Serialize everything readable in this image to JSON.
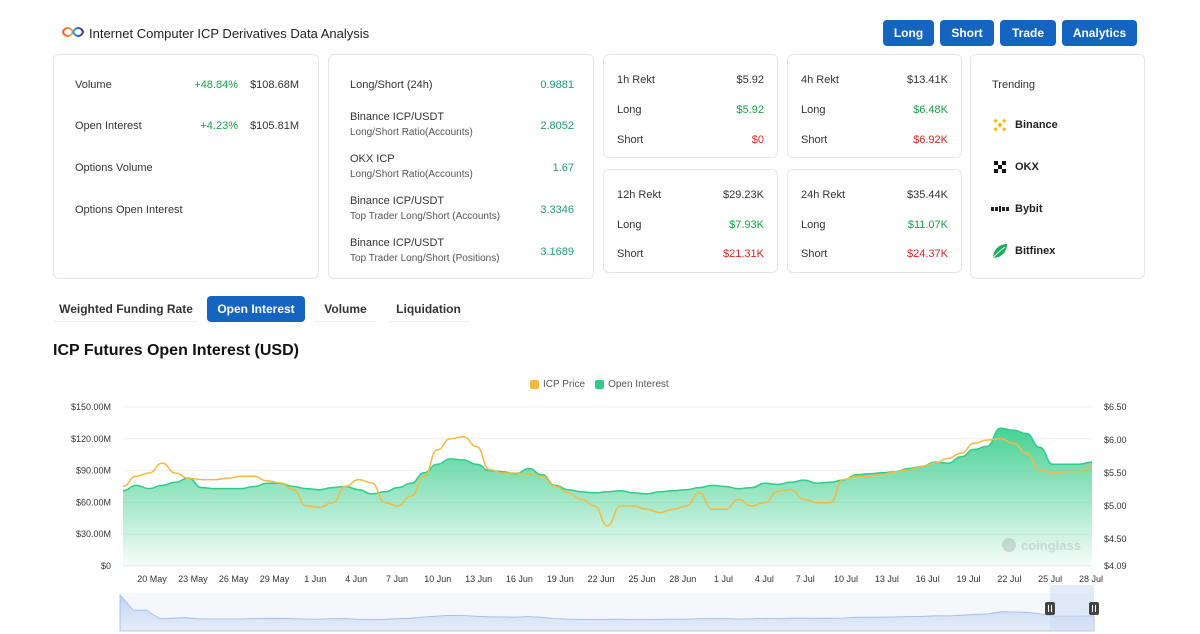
{
  "header": {
    "title": "Internet Computer ICP Derivatives Data Analysis",
    "buttons": [
      "Long",
      "Short",
      "Trade",
      "Analytics"
    ]
  },
  "stats": {
    "volume": {
      "label": "Volume",
      "change": "+48.84%",
      "value": "$108.68M"
    },
    "open_interest": {
      "label": "Open Interest",
      "change": "+4.23%",
      "value": "$105.81M"
    },
    "options_volume": {
      "label": "Options Volume"
    },
    "options_open_interest": {
      "label": "Options Open Interest"
    }
  },
  "ratios": [
    {
      "title": "Long/Short (24h)",
      "sub": "",
      "value": "0.9881"
    },
    {
      "title": "Binance ICP/USDT",
      "sub": "Long/Short Ratio(Accounts)",
      "value": "2.8052"
    },
    {
      "title": "OKX ICP",
      "sub": "Long/Short Ratio(Accounts)",
      "value": "1.67"
    },
    {
      "title": "Binance ICP/USDT",
      "sub": "Top Trader Long/Short (Accounts)",
      "value": "3.3346"
    },
    {
      "title": "Binance ICP/USDT",
      "sub": "Top Trader Long/Short (Positions)",
      "value": "3.1689"
    }
  ],
  "rekt": [
    {
      "title": "1h Rekt",
      "total": "$5.92",
      "long_label": "Long",
      "long": "$5.92",
      "short_label": "Short",
      "short": "$0"
    },
    {
      "title": "4h Rekt",
      "total": "$13.41K",
      "long_label": "Long",
      "long": "$6.48K",
      "short_label": "Short",
      "short": "$6.92K"
    },
    {
      "title": "12h Rekt",
      "total": "$29.23K",
      "long_label": "Long",
      "long": "$7.93K",
      "short_label": "Short",
      "short": "$21.31K"
    },
    {
      "title": "24h Rekt",
      "total": "$35.44K",
      "long_label": "Long",
      "long": "$11.07K",
      "short_label": "Short",
      "short": "$24.37K"
    }
  ],
  "trending": {
    "title": "Trending",
    "items": [
      {
        "name": "Binance",
        "icon": "binance-icon",
        "color": "#f0b90b"
      },
      {
        "name": "OKX",
        "icon": "okx-icon",
        "color": "#111111"
      },
      {
        "name": "Bybit",
        "icon": "bybit-icon",
        "color": "#222222"
      },
      {
        "name": "Bitfinex",
        "icon": "bitfinex-icon",
        "color": "#16b157"
      }
    ]
  },
  "tabs": {
    "items": [
      "Weighted Funding Rate",
      "Open Interest",
      "Volume",
      "Liquidation"
    ],
    "active": "Open Interest"
  },
  "chart_title": "ICP Futures Open Interest (USD)",
  "watermark": "coinglass",
  "colors": {
    "accent": "#1565c0",
    "oi_series": "#2ecc8a",
    "price_series": "#f5b942",
    "up": "#16a34a",
    "down": "#dc2626"
  },
  "chart_data": {
    "type": "area",
    "legend": [
      "ICP Price",
      "Open Interest"
    ],
    "legend_position": "top-center",
    "x_ticks": [
      "20 May",
      "23 May",
      "26 May",
      "29 May",
      "1 Jun",
      "4 Jun",
      "7 Jun",
      "10 Jun",
      "13 Jun",
      "16 Jun",
      "19 Jun",
      "22 Jun",
      "25 Jun",
      "28 Jun",
      "1 Jul",
      "4 Jul",
      "7 Jul",
      "10 Jul",
      "13 Jul",
      "16 Jul",
      "19 Jul",
      "22 Jul",
      "25 Jul",
      "28 Jul"
    ],
    "y_left_ticks": [
      "$0",
      "$30.00M",
      "$60.00M",
      "$90.00M",
      "$120.00M",
      "$150.00M"
    ],
    "y_left_range": [
      0,
      150
    ],
    "y_right_ticks": [
      "$4.09",
      "$4.50",
      "$5.00",
      "$5.50",
      "$6.00",
      "$6.50"
    ],
    "y_right_range": [
      4.09,
      6.5
    ],
    "grid": true,
    "series": [
      {
        "name": "Open Interest",
        "axis": "left",
        "values": [
          71,
          76,
          73,
          76,
          79,
          83,
          74,
          73,
          73,
          73,
          75,
          78,
          78,
          75,
          73,
          72,
          74,
          75,
          72,
          68,
          70,
          74,
          78,
          88,
          96,
          101,
          100,
          96,
          90,
          89,
          87,
          92,
          86,
          76,
          72,
          70,
          69,
          70,
          71,
          69,
          68,
          70,
          71,
          72,
          74,
          76,
          75,
          73,
          74,
          78,
          77,
          79,
          81,
          78,
          79,
          81,
          86,
          87,
          88,
          89,
          92,
          94,
          98,
          97,
          103,
          110,
          113,
          130,
          128,
          125,
          112,
          96,
          96,
          96,
          98
        ]
      },
      {
        "name": "ICP Price",
        "axis": "right",
        "values": [
          5.3,
          5.45,
          5.5,
          5.65,
          5.5,
          5.42,
          5.4,
          5.4,
          5.42,
          5.45,
          5.45,
          5.38,
          5.35,
          5.25,
          5.0,
          4.98,
          5.05,
          5.3,
          5.4,
          5.35,
          5.05,
          5.0,
          5.15,
          5.45,
          5.85,
          6.02,
          6.05,
          5.9,
          5.55,
          5.5,
          5.5,
          5.48,
          5.45,
          5.3,
          5.2,
          5.1,
          5.0,
          4.7,
          5.0,
          5.0,
          4.95,
          4.9,
          4.95,
          5.0,
          5.2,
          4.95,
          4.95,
          5.1,
          5.0,
          5.05,
          5.22,
          5.25,
          5.1,
          5.05,
          5.05,
          5.4,
          5.45,
          5.45,
          5.48,
          5.52,
          5.55,
          5.6,
          5.65,
          5.72,
          5.8,
          5.95,
          6.0,
          6.02,
          5.95,
          5.8,
          5.55,
          5.5,
          5.52,
          5.52,
          5.6
        ]
      }
    ]
  }
}
